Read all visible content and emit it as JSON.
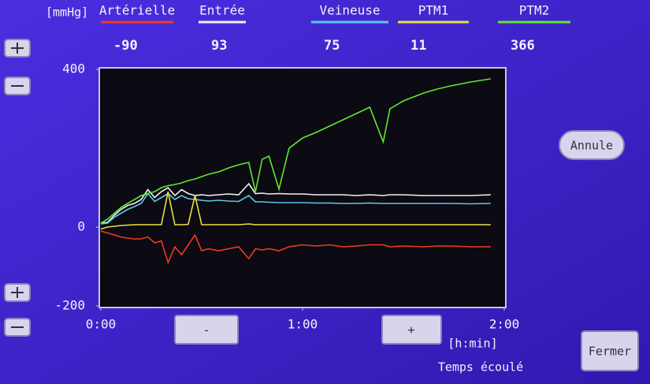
{
  "chart_data": {
    "type": "line",
    "unit": "[mmHg]",
    "x_unit": "[h:min]",
    "x_label": "Temps écoulé",
    "x": [
      0,
      2,
      4,
      6,
      8,
      10,
      12,
      14,
      16,
      18,
      20,
      22,
      24,
      26,
      28,
      30,
      32,
      35,
      38,
      41,
      44,
      46,
      48,
      50,
      53,
      56,
      60,
      64,
      68,
      72,
      76,
      80,
      84,
      86,
      90,
      96,
      100,
      104,
      110,
      116
    ],
    "xlim": [
      0,
      120
    ],
    "xticks": [
      {
        "value": 0,
        "label": "0:00"
      },
      {
        "value": 60,
        "label": "1:00"
      },
      {
        "value": 120,
        "label": "2:00"
      }
    ],
    "ylim": [
      -200,
      400
    ],
    "yticks": [
      -200,
      0,
      400
    ],
    "series": [
      {
        "name": "Artérielle",
        "color": "#f03a24",
        "current": -90,
        "values": [
          -10,
          -15,
          -20,
          -25,
          -28,
          -30,
          -30,
          -25,
          -40,
          -35,
          -90,
          -50,
          -70,
          -45,
          -20,
          -60,
          -55,
          -60,
          -55,
          -50,
          -80,
          -55,
          -58,
          -55,
          -60,
          -50,
          -45,
          -48,
          -45,
          -50,
          -48,
          -45,
          -45,
          -50,
          -48,
          -50,
          -48,
          -48,
          -50,
          -50
        ]
      },
      {
        "name": "Entrée",
        "color": "#f2f0f4",
        "current": 93,
        "values": [
          10,
          12,
          30,
          45,
          55,
          60,
          70,
          95,
          75,
          90,
          100,
          80,
          95,
          85,
          80,
          82,
          80,
          82,
          84,
          82,
          110,
          85,
          86,
          84,
          85,
          84,
          84,
          82,
          82,
          82,
          80,
          82,
          80,
          82,
          82,
          80,
          80,
          80,
          80,
          82
        ]
      },
      {
        "name": "Veineuse",
        "color": "#5cc8e8",
        "current": 75,
        "values": [
          8,
          10,
          25,
          35,
          45,
          52,
          60,
          85,
          65,
          75,
          85,
          70,
          80,
          72,
          70,
          68,
          66,
          68,
          66,
          65,
          80,
          64,
          64,
          63,
          62,
          62,
          62,
          61,
          61,
          60,
          60,
          61,
          60,
          60,
          60,
          60,
          60,
          60,
          59,
          60
        ]
      },
      {
        "name": "PTM1",
        "color": "#e8e040",
        "current": 11,
        "values": [
          -5,
          0,
          2,
          4,
          5,
          6,
          6,
          6,
          6,
          6,
          90,
          6,
          6,
          7,
          80,
          6,
          6,
          6,
          6,
          6,
          8,
          6,
          6,
          6,
          6,
          6,
          6,
          6,
          6,
          6,
          6,
          6,
          6,
          6,
          6,
          6,
          6,
          6,
          6,
          6
        ]
      },
      {
        "name": "PTM2",
        "color": "#5ee830",
        "current": 366,
        "values": [
          10,
          20,
          35,
          50,
          60,
          70,
          80,
          85,
          90,
          100,
          105,
          108,
          112,
          118,
          122,
          128,
          134,
          140,
          150,
          158,
          164,
          90,
          172,
          180,
          96,
          200,
          226,
          240,
          256,
          272,
          288,
          304,
          216,
          300,
          320,
          340,
          350,
          358,
          368,
          376
        ]
      }
    ]
  },
  "ui": {
    "time_back": "-",
    "time_forward": "+",
    "cancel": "Annule",
    "close": "Fermer"
  }
}
